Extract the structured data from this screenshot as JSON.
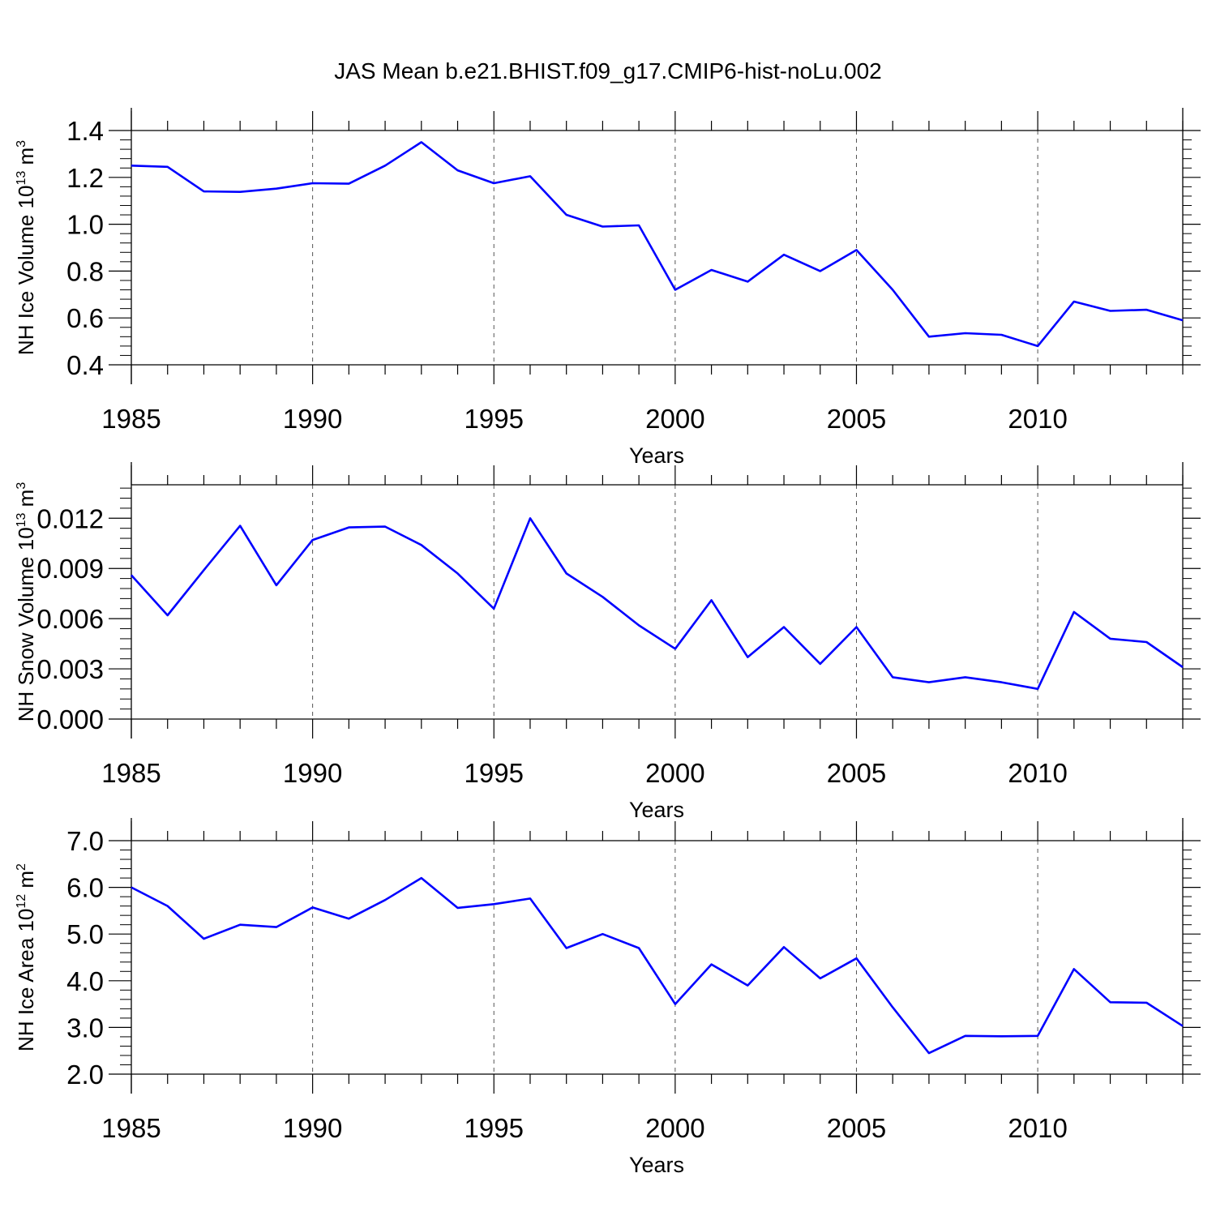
{
  "title": "JAS Mean b.e21.BHIST.f09_g17.CMIP6-hist-noLu.002",
  "line_color": "#0000ff",
  "chart_data": [
    {
      "type": "line",
      "xlabel": "Years",
      "ylabel": "NH Ice Volume 10",
      "ylabel_exp": "13",
      "ylabel_unit": " m",
      "ylabel_unit_exp": "3",
      "xlim": [
        1985,
        2014
      ],
      "ylim": [
        0.4,
        1.4
      ],
      "xticks": [
        1985,
        1990,
        1995,
        2000,
        2005,
        2010
      ],
      "yticks": [
        "0.4",
        "0.6",
        "0.8",
        "1.0",
        "1.2",
        "1.4"
      ],
      "x": [
        1985,
        1986,
        1987,
        1988,
        1989,
        1990,
        1991,
        1992,
        1993,
        1994,
        1995,
        1996,
        1997,
        1998,
        1999,
        2000,
        2001,
        2002,
        2003,
        2004,
        2005,
        2006,
        2007,
        2008,
        2009,
        2010,
        2011,
        2012,
        2013,
        2014
      ],
      "series": [
        {
          "values": [
            1.25,
            1.245,
            1.14,
            1.138,
            1.152,
            1.175,
            1.173,
            1.25,
            1.35,
            1.23,
            1.175,
            1.205,
            1.04,
            0.99,
            0.995,
            0.72,
            0.805,
            0.755,
            0.87,
            0.8,
            0.89,
            0.72,
            0.52,
            0.535,
            0.528,
            0.48,
            0.67,
            0.63,
            0.635,
            0.59
          ]
        }
      ]
    },
    {
      "type": "line",
      "xlabel": "Years",
      "ylabel": "NH Snow Volume 10",
      "ylabel_exp": "13",
      "ylabel_unit": " m",
      "ylabel_unit_exp": "3",
      "xlim": [
        1985,
        2014
      ],
      "ylim": [
        0.0,
        0.014
      ],
      "xticks": [
        1985,
        1990,
        1995,
        2000,
        2005,
        2010
      ],
      "yticks": [
        "0.000",
        "0.003",
        "0.006",
        "0.009",
        "0.012"
      ],
      "x": [
        1985,
        1986,
        1987,
        1988,
        1989,
        1990,
        1991,
        1992,
        1993,
        1994,
        1995,
        1996,
        1997,
        1998,
        1999,
        2000,
        2001,
        2002,
        2003,
        2004,
        2005,
        2006,
        2007,
        2008,
        2009,
        2010,
        2011,
        2012,
        2013,
        2014
      ],
      "series": [
        {
          "values": [
            0.0086,
            0.0062,
            0.0089,
            0.01155,
            0.008,
            0.0107,
            0.01145,
            0.0115,
            0.0104,
            0.0087,
            0.0066,
            0.012,
            0.0087,
            0.0073,
            0.0056,
            0.0042,
            0.0071,
            0.0037,
            0.0055,
            0.0033,
            0.0055,
            0.0025,
            0.0022,
            0.0025,
            0.0022,
            0.0018,
            0.0064,
            0.0048,
            0.0046,
            0.0031
          ]
        }
      ]
    },
    {
      "type": "line",
      "xlabel": "Years",
      "ylabel": "NH Ice Area 10",
      "ylabel_exp": "12",
      "ylabel_unit": " m",
      "ylabel_unit_exp": "2",
      "xlim": [
        1985,
        2014
      ],
      "ylim": [
        2.0,
        7.0
      ],
      "xticks": [
        1985,
        1990,
        1995,
        2000,
        2005,
        2010
      ],
      "yticks": [
        "2.0",
        "3.0",
        "4.0",
        "5.0",
        "6.0",
        "7.0"
      ],
      "x": [
        1985,
        1986,
        1987,
        1988,
        1989,
        1990,
        1991,
        1992,
        1993,
        1994,
        1995,
        1996,
        1997,
        1998,
        1999,
        2000,
        2001,
        2002,
        2003,
        2004,
        2005,
        2006,
        2007,
        2008,
        2009,
        2010,
        2011,
        2012,
        2013,
        2014
      ],
      "series": [
        {
          "values": [
            6.0,
            5.6,
            4.9,
            5.2,
            5.15,
            5.57,
            5.33,
            5.73,
            6.2,
            5.56,
            5.64,
            5.76,
            4.7,
            5.0,
            4.7,
            3.5,
            4.35,
            3.9,
            4.72,
            4.05,
            4.48,
            3.43,
            2.45,
            2.82,
            2.81,
            2.82,
            4.25,
            3.54,
            3.53,
            3.03
          ]
        }
      ]
    }
  ]
}
